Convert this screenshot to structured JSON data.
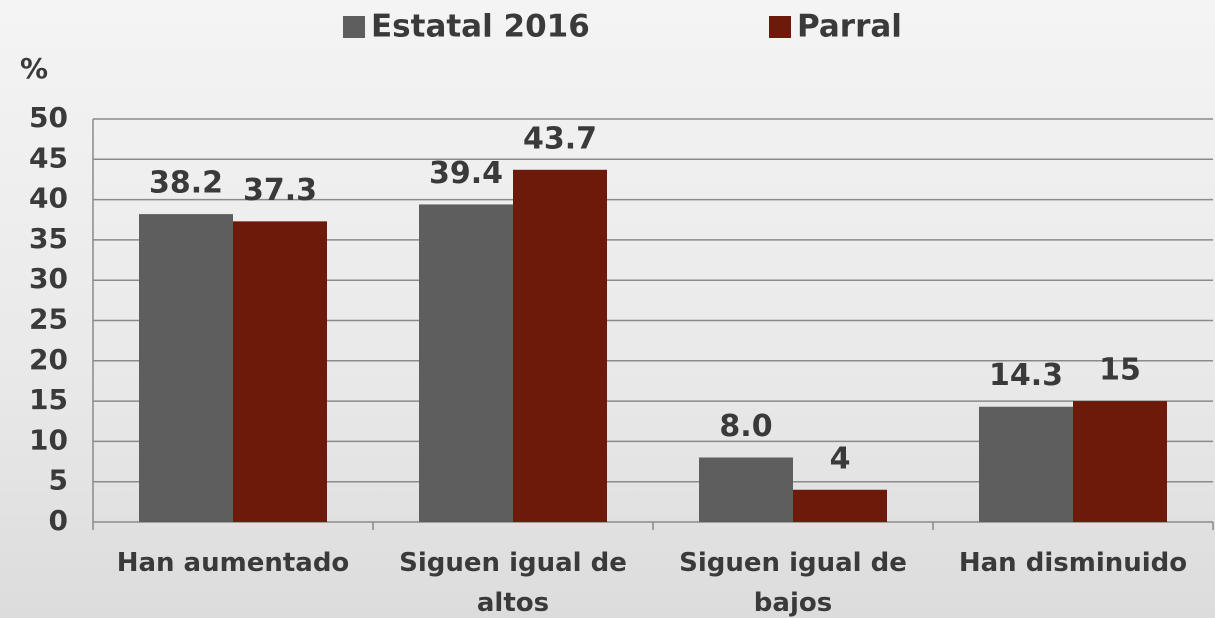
{
  "chart_data": {
    "type": "bar",
    "ylabel": "%",
    "categories": [
      "Han aumentado",
      "Siguen igual de altos",
      "Siguen igual de bajos",
      "Han disminuido"
    ],
    "series": [
      {
        "name": "Estatal 2016",
        "color": "#5e5e5e",
        "values": [
          38.2,
          39.4,
          8.0,
          14.3
        ],
        "value_labels": [
          "38.2",
          "39.4",
          "8.0",
          "14.3"
        ]
      },
      {
        "name": "Parral",
        "color": "#6d1a0b",
        "values": [
          37.3,
          43.7,
          4,
          15
        ]
      }
    ],
    "ylim": [
      0,
      50
    ],
    "yticks": [
      0,
      5,
      10,
      15,
      20,
      25,
      30,
      35,
      40,
      45,
      50
    ],
    "grid": true
  }
}
